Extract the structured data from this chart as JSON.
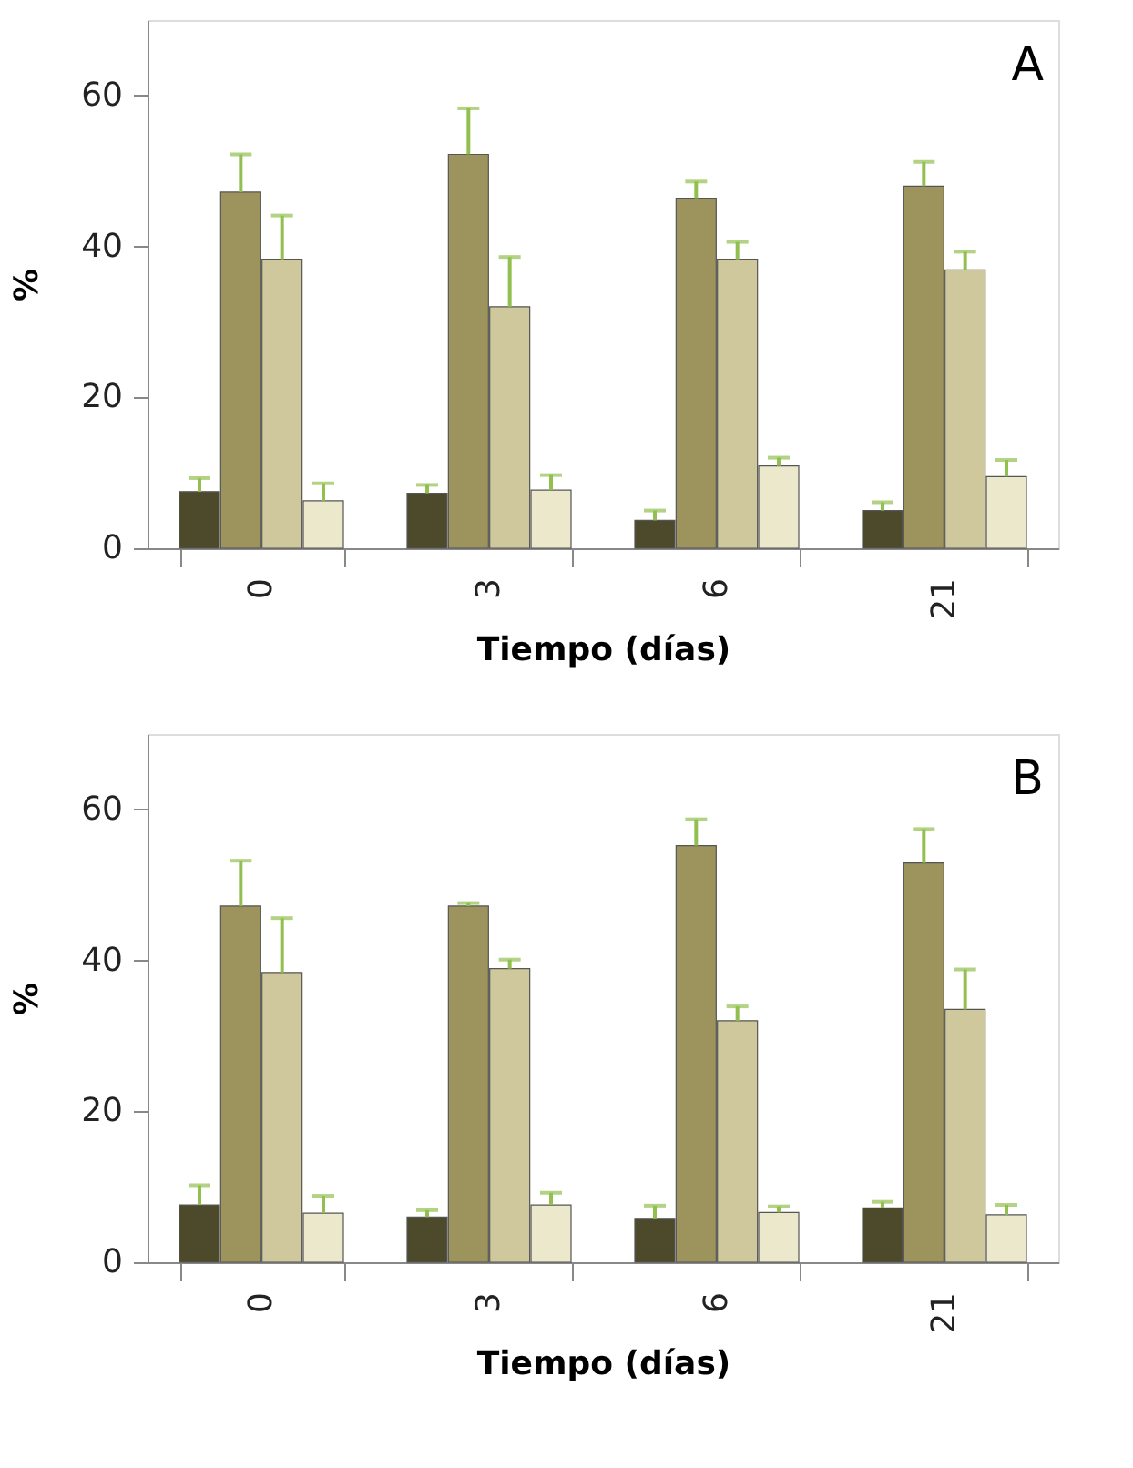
{
  "chart_data": [
    {
      "type": "bar",
      "xlabel": "Tiempo (días)",
      "ylabel": "%",
      "annotations": [
        "A"
      ],
      "categories": [
        "0",
        "3",
        "6",
        "21"
      ],
      "ylim": [
        0,
        70
      ],
      "yticks": [
        0,
        20,
        40,
        60
      ],
      "grid": false,
      "legend": false,
      "series": [
        {
          "color": "#4d4a2c",
          "values": [
            7.5,
            7.3,
            3.7,
            5.0
          ],
          "errors": [
            [
              7.5,
              9.3
            ],
            [
              7.3,
              8.4
            ],
            [
              3.7,
              5.0
            ],
            [
              5.0,
              6.1
            ]
          ]
        },
        {
          "color": "#9d935c",
          "values": [
            47.2,
            52.2,
            46.4,
            48.0
          ],
          "errors": [
            [
              47.2,
              52.2
            ],
            [
              52.2,
              58.3
            ],
            [
              46.4,
              48.6
            ],
            [
              48.0,
              51.2
            ]
          ]
        },
        {
          "color": "#cfc89c",
          "values": [
            38.3,
            32.0,
            38.3,
            36.9
          ],
          "errors": [
            [
              38.3,
              44.1
            ],
            [
              32.0,
              38.6
            ],
            [
              38.3,
              40.6
            ],
            [
              36.9,
              39.3
            ]
          ]
        },
        {
          "color": "#ece8cc",
          "values": [
            6.3,
            7.7,
            10.9,
            9.5
          ],
          "errors": [
            [
              6.3,
              8.6
            ],
            [
              7.7,
              9.7
            ],
            [
              10.9,
              12.0
            ],
            [
              9.5,
              11.7
            ]
          ]
        }
      ]
    },
    {
      "type": "bar",
      "xlabel": "Tiempo (días)",
      "ylabel": "%",
      "annotations": [
        "B"
      ],
      "categories": [
        "0",
        "3",
        "6",
        "21"
      ],
      "ylim": [
        0,
        70
      ],
      "yticks": [
        0,
        20,
        40,
        60
      ],
      "grid": false,
      "legend": false,
      "series": [
        {
          "color": "#4d4a2c",
          "values": [
            7.6,
            6.0,
            5.7,
            7.2
          ],
          "errors": [
            [
              7.6,
              10.2
            ],
            [
              6.0,
              6.9
            ],
            [
              5.7,
              7.5
            ],
            [
              7.2,
              8.0
            ]
          ]
        },
        {
          "color": "#9d935c",
          "values": [
            47.2,
            47.2,
            55.2,
            52.9
          ],
          "errors": [
            [
              47.2,
              53.2
            ],
            [
              47.2,
              47.6
            ],
            [
              55.2,
              58.7
            ],
            [
              52.9,
              57.4
            ]
          ]
        },
        {
          "color": "#cfc89c",
          "values": [
            38.4,
            38.9,
            32.0,
            33.5
          ],
          "errors": [
            [
              38.4,
              45.6
            ],
            [
              38.9,
              40.1
            ],
            [
              32.0,
              33.9
            ],
            [
              33.5,
              38.8
            ]
          ]
        },
        {
          "color": "#ece8cc",
          "values": [
            6.5,
            7.6,
            6.6,
            6.3
          ],
          "errors": [
            [
              6.5,
              8.8
            ],
            [
              7.6,
              9.2
            ],
            [
              6.6,
              7.4
            ],
            [
              6.3,
              7.6
            ]
          ]
        }
      ]
    }
  ]
}
